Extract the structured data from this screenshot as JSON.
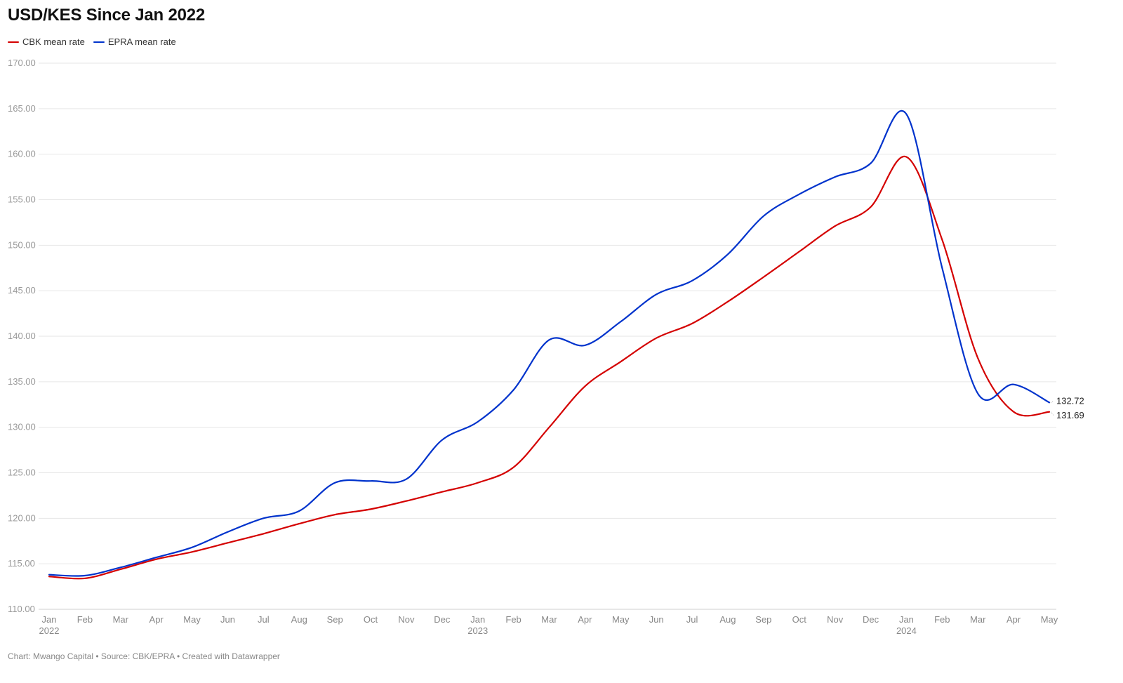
{
  "title": "USD/KES Since Jan 2022",
  "footer": "Chart: Mwango Capital • Source: CBK/EPRA • Created with Datawrapper",
  "chart_data": {
    "type": "line",
    "title": "USD/KES Since Jan 2022",
    "xlabel": "",
    "ylabel": "",
    "ylim": [
      110,
      170
    ],
    "yticks": [
      "110.00",
      "115.00",
      "120.00",
      "125.00",
      "130.00",
      "135.00",
      "140.00",
      "145.00",
      "150.00",
      "155.00",
      "160.00",
      "165.00",
      "170.00"
    ],
    "grid": true,
    "legend_position": "top-left",
    "x": [
      "2022-01",
      "2022-02",
      "2022-03",
      "2022-04",
      "2022-05",
      "2022-06",
      "2022-07",
      "2022-08",
      "2022-09",
      "2022-10",
      "2022-11",
      "2022-12",
      "2023-01",
      "2023-02",
      "2023-03",
      "2023-04",
      "2023-05",
      "2023-06",
      "2023-07",
      "2023-08",
      "2023-09",
      "2023-10",
      "2023-11",
      "2023-12",
      "2024-01",
      "2024-02",
      "2024-03",
      "2024-04",
      "2024-05"
    ],
    "x_tick_labels": [
      {
        "month": "Jan",
        "year": "2022"
      },
      {
        "month": "Feb",
        "year": ""
      },
      {
        "month": "Mar",
        "year": ""
      },
      {
        "month": "Apr",
        "year": ""
      },
      {
        "month": "May",
        "year": ""
      },
      {
        "month": "Jun",
        "year": ""
      },
      {
        "month": "Jul",
        "year": ""
      },
      {
        "month": "Aug",
        "year": ""
      },
      {
        "month": "Sep",
        "year": ""
      },
      {
        "month": "Oct",
        "year": ""
      },
      {
        "month": "Nov",
        "year": ""
      },
      {
        "month": "Dec",
        "year": ""
      },
      {
        "month": "Jan",
        "year": "2023"
      },
      {
        "month": "Feb",
        "year": ""
      },
      {
        "month": "Mar",
        "year": ""
      },
      {
        "month": "Apr",
        "year": ""
      },
      {
        "month": "May",
        "year": ""
      },
      {
        "month": "Jun",
        "year": ""
      },
      {
        "month": "Jul",
        "year": ""
      },
      {
        "month": "Aug",
        "year": ""
      },
      {
        "month": "Sep",
        "year": ""
      },
      {
        "month": "Oct",
        "year": ""
      },
      {
        "month": "Nov",
        "year": ""
      },
      {
        "month": "Dec",
        "year": ""
      },
      {
        "month": "Jan",
        "year": "2024"
      },
      {
        "month": "Feb",
        "year": ""
      },
      {
        "month": "Mar",
        "year": ""
      },
      {
        "month": "Apr",
        "year": ""
      },
      {
        "month": "May",
        "year": ""
      }
    ],
    "series": [
      {
        "name": "CBK mean rate",
        "color": "#d40000",
        "values": [
          113.6,
          113.4,
          114.4,
          115.5,
          116.3,
          117.3,
          118.3,
          119.4,
          120.4,
          121.0,
          121.9,
          122.9,
          123.9,
          125.6,
          130.0,
          134.5,
          137.2,
          139.8,
          141.4,
          143.8,
          146.5,
          149.3,
          152.1,
          154.2,
          159.7,
          150.6,
          137.6,
          131.7,
          131.69
        ],
        "end_label": "131.69"
      },
      {
        "name": "EPRA mean rate",
        "color": "#0033cc",
        "values": [
          113.8,
          113.7,
          114.6,
          115.7,
          116.8,
          118.5,
          120.0,
          120.8,
          123.9,
          124.1,
          124.3,
          128.6,
          130.6,
          134.1,
          139.6,
          139.0,
          141.6,
          144.6,
          146.1,
          149.0,
          153.2,
          155.6,
          157.5,
          159.0,
          164.4,
          147.5,
          133.7,
          134.7,
          132.72
        ],
        "end_label": "132.72"
      }
    ]
  }
}
